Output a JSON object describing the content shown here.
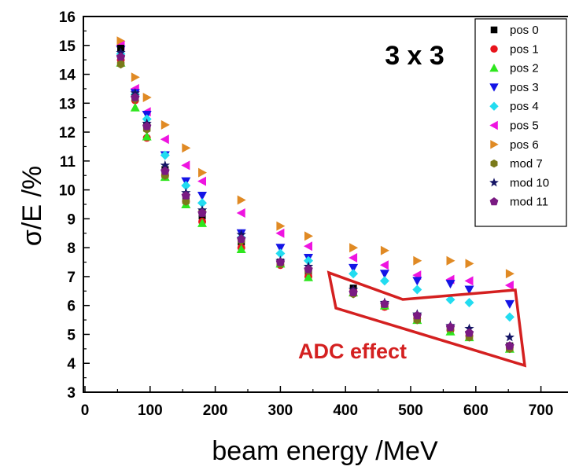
{
  "chart_data": {
    "type": "scatter",
    "title": "",
    "xlabel": "beam energy /MeV",
    "ylabel": "σ/E /%",
    "xlim": [
      0,
      750
    ],
    "ylim": [
      3,
      16
    ],
    "x_ticks": [
      "0",
      "100",
      "200",
      "300",
      "400",
      "500",
      "600",
      "700"
    ],
    "y_ticks": [
      "3",
      "4",
      "5",
      "6",
      "7",
      "8",
      "9",
      "10",
      "11",
      "12",
      "13",
      "14",
      "15",
      "16"
    ],
    "grid": false,
    "legend_position": "top-right",
    "annotations": {
      "matrix_label": "3 x 3",
      "adc_label": "ADC effect",
      "adc_color": "#d42020"
    },
    "energies": [
      55,
      77,
      95,
      123,
      155,
      180,
      240,
      300,
      343,
      412,
      460,
      510,
      561,
      590,
      652
    ],
    "series": [
      {
        "name": "pos 0",
        "marker": "square",
        "color": "#000000",
        "values": [
          14.9,
          13.2,
          12.2,
          10.7,
          9.7,
          9.1,
          8.2,
          7.5,
          7.1,
          6.6,
          6.0,
          5.6,
          5.2,
          5.0,
          4.6
        ]
      },
      {
        "name": "pos 1",
        "marker": "circle",
        "color": "#e8141c",
        "values": [
          14.5,
          13.1,
          11.8,
          10.5,
          9.6,
          8.9,
          8.0,
          7.4,
          7.0,
          6.5,
          5.95,
          5.55,
          5.15,
          4.95,
          4.55
        ]
      },
      {
        "name": "pos 2",
        "marker": "triangle-up",
        "color": "#2ee61e",
        "values": [
          14.4,
          12.85,
          11.85,
          10.45,
          9.5,
          8.85,
          7.95,
          7.45,
          6.98,
          6.45,
          6.0,
          5.5,
          5.1,
          4.9,
          4.5
        ]
      },
      {
        "name": "pos 3",
        "marker": "triangle-down",
        "color": "#1414e6",
        "values": [
          14.85,
          13.35,
          12.6,
          11.2,
          10.3,
          9.8,
          8.5,
          8.0,
          7.65,
          7.3,
          7.1,
          6.85,
          6.75,
          6.55,
          6.05
        ]
      },
      {
        "name": "pos 4",
        "marker": "diamond",
        "color": "#22dcf0",
        "values": [
          14.7,
          13.3,
          12.45,
          11.2,
          10.15,
          9.55,
          8.35,
          7.8,
          7.55,
          7.1,
          6.85,
          6.55,
          6.2,
          6.1,
          5.6
        ]
      },
      {
        "name": "pos 5",
        "marker": "triangle-left",
        "color": "#ee14e0",
        "values": [
          15.0,
          13.5,
          12.7,
          11.75,
          10.85,
          10.3,
          9.2,
          8.5,
          8.05,
          7.65,
          7.4,
          7.05,
          6.9,
          6.85,
          6.7
        ]
      },
      {
        "name": "pos 6",
        "marker": "triangle-right",
        "color": "#e08a24",
        "values": [
          15.15,
          13.9,
          13.2,
          12.25,
          11.45,
          10.6,
          9.65,
          8.75,
          8.4,
          8.0,
          7.9,
          7.55,
          7.55,
          7.45,
          7.1
        ]
      },
      {
        "name": "mod 7",
        "marker": "hexagon",
        "color": "#7a7a1a",
        "values": [
          14.35,
          13.15,
          12.1,
          10.5,
          9.6,
          9.25,
          8.25,
          7.45,
          7.2,
          6.4,
          6.05,
          5.5,
          5.2,
          4.9,
          4.5
        ]
      },
      {
        "name": "mod 10",
        "marker": "star",
        "color": "#141464",
        "values": [
          14.75,
          13.35,
          12.3,
          10.85,
          9.9,
          9.3,
          8.45,
          7.55,
          7.35,
          6.55,
          6.1,
          5.7,
          5.3,
          5.2,
          4.9
        ]
      },
      {
        "name": "mod 11",
        "marker": "pentagon",
        "color": "#7a1a82",
        "values": [
          14.6,
          13.2,
          12.2,
          10.65,
          9.8,
          9.2,
          8.3,
          7.5,
          7.25,
          6.45,
          6.05,
          5.65,
          5.25,
          5.05,
          4.6
        ]
      }
    ]
  }
}
